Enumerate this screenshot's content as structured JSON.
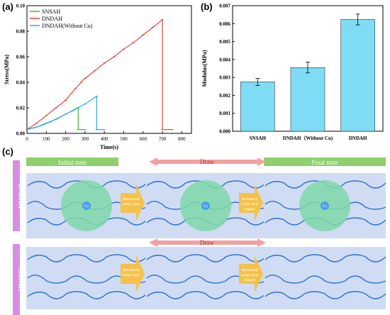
{
  "panel_labels": {
    "a": "(a)",
    "b": "(b)",
    "c": "(c)"
  },
  "chart_data": [
    {
      "type": "line",
      "xlabel": "Time(s)",
      "ylabel": "Stress(MPa)",
      "xlim": [
        0,
        850
      ],
      "ylim": [
        0,
        0.1
      ],
      "xticks": [
        0,
        100,
        200,
        300,
        400,
        500,
        600,
        700,
        800
      ],
      "yticks": [
        0.0,
        0.02,
        0.04,
        0.06,
        0.08,
        0.1
      ],
      "ytick_labels": [
        "0.00",
        "0.02",
        "0.04",
        "0.06",
        "0.08",
        "0.10"
      ],
      "legend_position": "top-left",
      "series": [
        {
          "name": "SNSAH",
          "color": "#3cb93c",
          "x": [
            0,
            40,
            80,
            120,
            160,
            200,
            240,
            265,
            265,
            300
          ],
          "y": [
            0.003,
            0.0045,
            0.0065,
            0.009,
            0.012,
            0.015,
            0.018,
            0.02,
            0.003,
            0.003
          ]
        },
        {
          "name": "DNDAH",
          "color": "#e8403a",
          "x": [
            0,
            50,
            100,
            150,
            200,
            250,
            280,
            300,
            350,
            400,
            450,
            500,
            550,
            600,
            650,
            700,
            700,
            750
          ],
          "y": [
            0.003,
            0.008,
            0.014,
            0.02,
            0.026,
            0.035,
            0.04,
            0.043,
            0.049,
            0.055,
            0.06,
            0.066,
            0.071,
            0.077,
            0.083,
            0.089,
            0.003,
            0.003
          ]
        },
        {
          "name": "DNDAH(Without Cu)",
          "color": "#2aa9e0",
          "x": [
            0,
            50,
            100,
            150,
            200,
            250,
            300,
            360,
            360,
            400
          ],
          "y": [
            0.003,
            0.005,
            0.008,
            0.011,
            0.015,
            0.019,
            0.023,
            0.029,
            0.003,
            0.003
          ]
        }
      ]
    },
    {
      "type": "bar",
      "xlabel": "",
      "ylabel": "Modulus(MPa)",
      "ylim": [
        0,
        0.007
      ],
      "yticks": [
        0,
        0.001,
        0.002,
        0.003,
        0.004,
        0.005,
        0.006,
        0.007
      ],
      "ytick_labels": [
        "0.000",
        "0.001",
        "0.002",
        "0.003",
        "0.004",
        "0.005",
        "0.006",
        "0.007"
      ],
      "categories": [
        "SNSAH",
        "DNDAH（Without Cu)",
        "DNDAH"
      ],
      "values": [
        0.00275,
        0.00355,
        0.00623
      ],
      "errors": [
        0.0002,
        0.0003,
        0.0003
      ],
      "bar_color": "#7fdcf4"
    }
  ],
  "schematic": {
    "row_labels": [
      "DNDAH",
      "SNSAH"
    ],
    "state_labels": {
      "initial": "Initial state",
      "final": "Final state"
    },
    "draw_label": "Draw",
    "arrow_labels": {
      "row1_left": [
        "Mechanical",
        "energy input"
      ],
      "row1_right": [
        "Mechanical",
        "energy input",
        "stopped"
      ],
      "row2_left": [
        "Mechanical",
        "energy input"
      ],
      "row2_right": [
        "Mechanical",
        "energy input",
        "stopped"
      ]
    },
    "center_label": "Cu",
    "colors": {
      "box": "#cfdcf3",
      "state_bar": "#8fcf6e",
      "draw_bar": "#f2a0a0",
      "row_label": "#d68fe0",
      "arrow": "#f4c24a",
      "sphere": "#7fd8a8",
      "chain": "#2f6fd0"
    }
  }
}
